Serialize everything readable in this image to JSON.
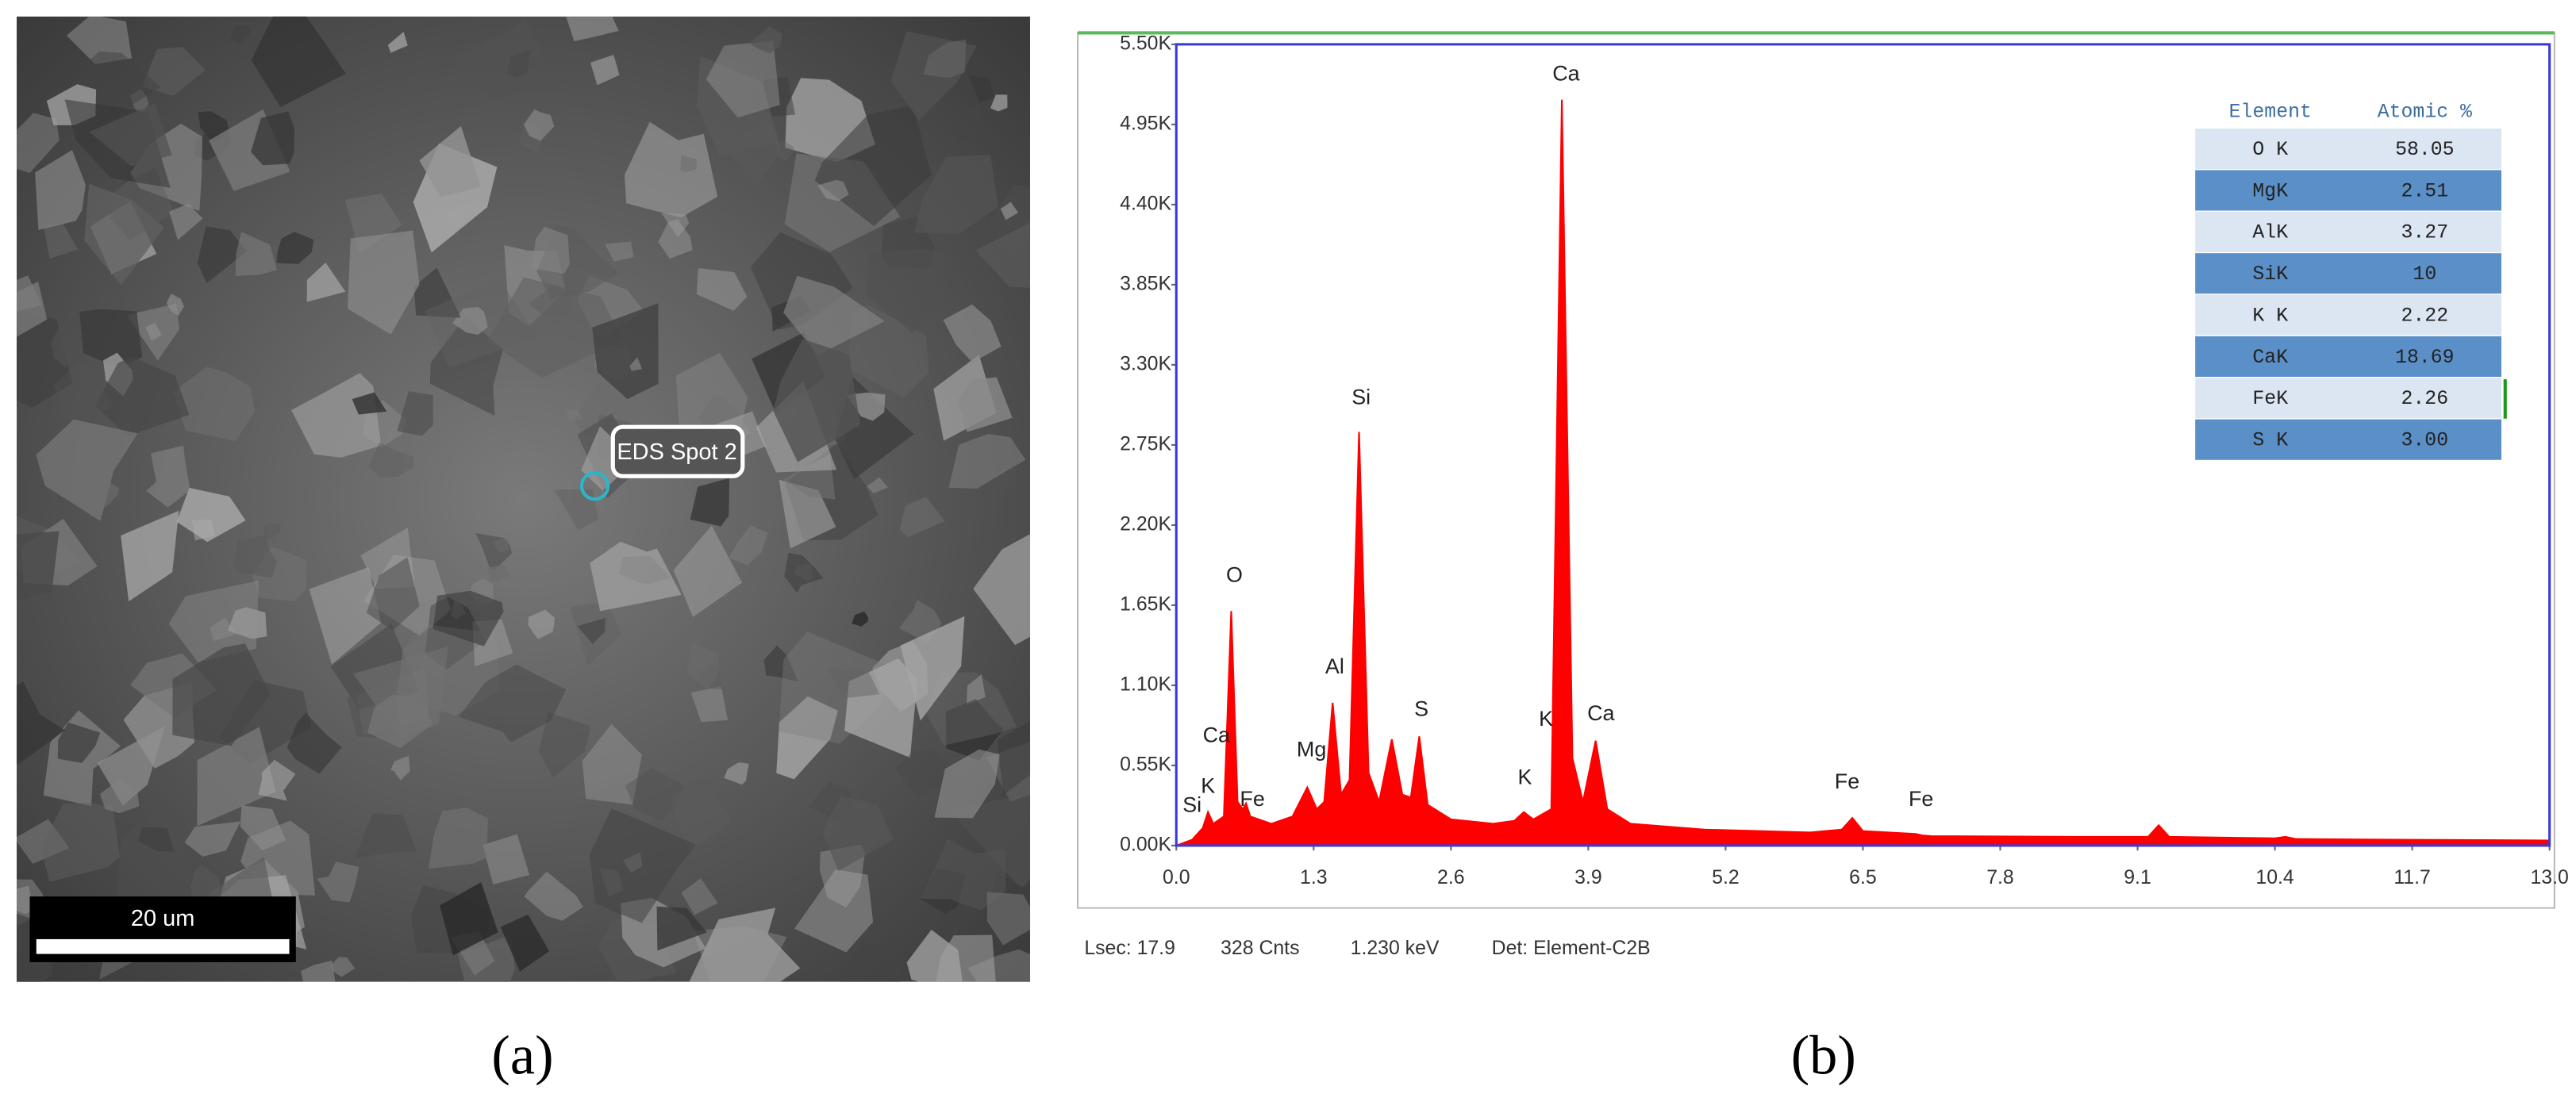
{
  "panel_a": {
    "spot_label": "EDS Spot 2",
    "scale_bar": "20 um",
    "caption": "(a)"
  },
  "chart_data": {
    "type": "area",
    "color": "#ff0000",
    "x": [
      0.0,
      0.15,
      0.25,
      0.3,
      0.35,
      0.45,
      0.52,
      0.58,
      0.63,
      0.66,
      0.7,
      0.9,
      1.1,
      1.24,
      1.33,
      1.4,
      1.48,
      1.56,
      1.64,
      1.73,
      1.82,
      1.92,
      2.04,
      2.14,
      2.22,
      2.3,
      2.38,
      2.6,
      3.0,
      3.2,
      3.29,
      3.38,
      3.55,
      3.65,
      3.75,
      3.85,
      3.97,
      4.08,
      4.3,
      5.0,
      6.0,
      6.3,
      6.4,
      6.5,
      7.0,
      7.06,
      7.15,
      8.5,
      9.2,
      9.3,
      9.4,
      10.4,
      10.5,
      10.6,
      11.7,
      13.0
    ],
    "values": [
      0,
      40,
      120,
      230,
      150,
      200,
      1610,
      300,
      250,
      290,
      200,
      150,
      200,
      400,
      250,
      300,
      980,
      350,
      450,
      2840,
      500,
      300,
      730,
      350,
      330,
      750,
      280,
      180,
      150,
      170,
      230,
      180,
      250,
      5120,
      600,
      300,
      720,
      250,
      150,
      110,
      90,
      110,
      190,
      100,
      80,
      70,
      65,
      60,
      60,
      140,
      60,
      50,
      60,
      45,
      40,
      35
    ],
    "xlim": [
      0,
      13.0
    ],
    "xticks": [
      {
        "value": 0,
        "label": "0.0"
      },
      1.3,
      2.6,
      3.9,
      5.2,
      6.5,
      7.8,
      9.1,
      10.4,
      11.7,
      {
        "value": 13,
        "label": "13.0"
      }
    ],
    "ylim": [
      0,
      5500
    ],
    "yticks": [
      {
        "value": 0,
        "label": "0.00K"
      },
      {
        "value": 550,
        "label": "0.55K"
      },
      {
        "value": 1100,
        "label": "1.10K"
      },
      {
        "value": 1650,
        "label": "1.65K"
      },
      {
        "value": 2200,
        "label": "2.20K"
      },
      {
        "value": 2750,
        "label": "2.75K"
      },
      {
        "value": 3300,
        "label": "3.30K"
      },
      {
        "value": 3850,
        "label": "3.85K"
      },
      {
        "value": 4400,
        "label": "4.40K"
      },
      {
        "value": 4950,
        "label": "4.95K"
      },
      {
        "value": 5500,
        "label": "5.50K"
      }
    ],
    "peak_labels": [
      {
        "label": "Si",
        "x": 0.15,
        "y": 270
      },
      {
        "label": "K",
        "x": 0.3,
        "y": 400
      },
      {
        "label": "Ca",
        "x": 0.38,
        "y": 750
      },
      {
        "label": "Fe",
        "x": 0.72,
        "y": 310
      },
      {
        "label": "O",
        "x": 0.55,
        "y": 1850
      },
      {
        "label": "Mg",
        "x": 1.28,
        "y": 650
      },
      {
        "label": "Al",
        "x": 1.5,
        "y": 1220
      },
      {
        "label": "Si",
        "x": 1.75,
        "y": 3070
      },
      {
        "label": "S",
        "x": 2.32,
        "y": 930
      },
      {
        "label": "K",
        "x": 3.3,
        "y": 460
      },
      {
        "label": "K",
        "x": 3.5,
        "y": 860
      },
      {
        "label": "Ca",
        "x": 4.02,
        "y": 900
      },
      {
        "label": "Ca",
        "x": 3.69,
        "y": 5290
      },
      {
        "label": "Fe",
        "x": 6.35,
        "y": 430
      },
      {
        "label": "Fe",
        "x": 7.05,
        "y": 310
      }
    ],
    "table": {
      "header": [
        "Element",
        "Atomic %"
      ],
      "rows": [
        [
          "O K",
          "58.05"
        ],
        [
          "MgK",
          "2.51"
        ],
        [
          "AlK",
          "3.27"
        ],
        [
          "SiK",
          "10"
        ],
        [
          "K K",
          "2.22"
        ],
        [
          "CaK",
          "18.69"
        ],
        [
          "FeK",
          "2.26"
        ],
        [
          "S K",
          "3.00"
        ]
      ]
    },
    "status": [
      "Lsec: 17.9",
      "328 Cnts",
      "1.230 keV",
      "Det: Element-C2B"
    ],
    "caption": "(b)"
  }
}
